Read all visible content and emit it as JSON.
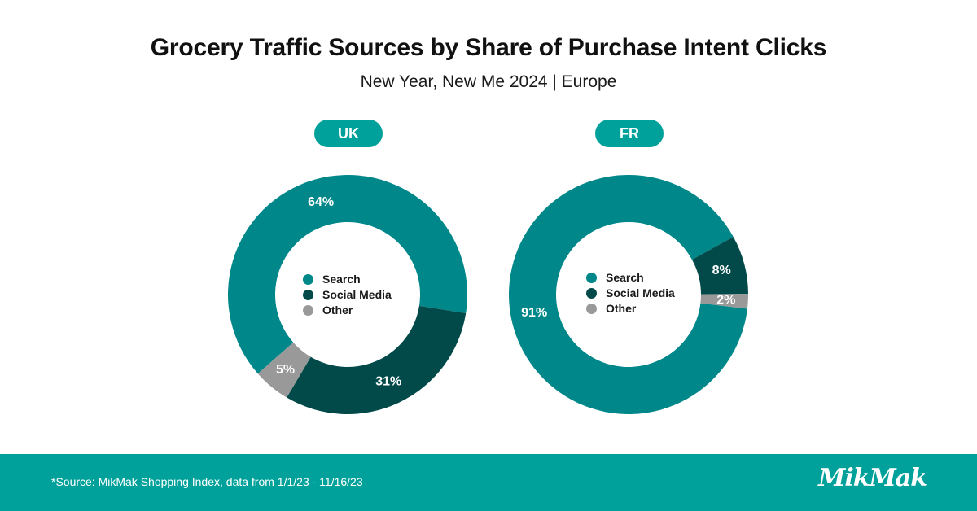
{
  "header": {
    "title": "Grocery Traffic Sources by Share of Purchase Intent Clicks",
    "subtitle": "New Year, New Me 2024 | Europe"
  },
  "colors": {
    "search": "#00878A",
    "social_media": "#024A4A",
    "other": "#999999",
    "accent": "#00A19A",
    "pill": "#00A19A"
  },
  "legend": {
    "items": [
      {
        "label": "Search",
        "color": "#00878A"
      },
      {
        "label": "Social Media",
        "color": "#024A4A"
      },
      {
        "label": "Other",
        "color": "#999999"
      }
    ]
  },
  "chart_data": [
    {
      "type": "pie",
      "title": "UK",
      "categories": [
        "Search",
        "Social Media",
        "Other"
      ],
      "values": [
        64,
        31,
        5
      ],
      "labels": [
        "64%",
        "31%",
        "5%"
      ]
    },
    {
      "type": "pie",
      "title": "FR",
      "categories": [
        "Search",
        "Social Media",
        "Other"
      ],
      "values": [
        91,
        8,
        2
      ],
      "labels": [
        "91%",
        "8%",
        "2%"
      ]
    }
  ],
  "footer": {
    "source": "*Source: MikMak Shopping Index, data from 1/1/23 - 11/16/23",
    "logo": "MikMak"
  }
}
